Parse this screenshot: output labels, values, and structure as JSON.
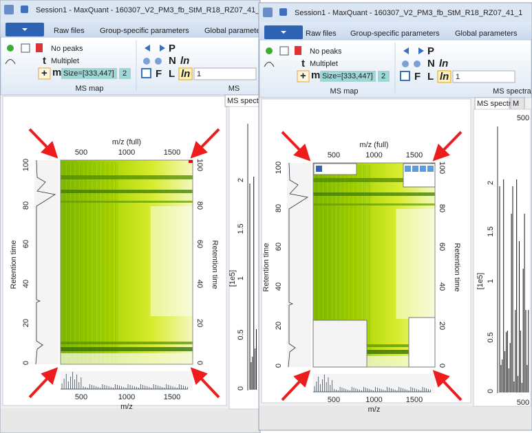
{
  "windows": [
    {
      "title": "Session1 - MaxQuant - 160307_V2_PM3_fb_StM_R18_RZ07_41_",
      "tabs": [
        "Raw files",
        "Group-specific parameters",
        "Global paramete"
      ],
      "ribbon": {
        "peaks": "No peaks",
        "multiplet": "Multiplet",
        "size": "Size=[333,447]",
        "size_value": "2",
        "input": "1",
        "icons": [
          "P",
          "N",
          "F",
          "L",
          "ln",
          "ln",
          "t",
          "m",
          "+"
        ],
        "group_labels": [
          "MS map",
          "MS"
        ]
      },
      "view_tabs": [
        "MS spectr"
      ],
      "map": {
        "top_axis_label": "m/z (full)",
        "top_ticks": [
          500,
          1000,
          1500
        ],
        "y_label_left": "Retention time",
        "y_label_right": "Retention time",
        "y_ticks": [
          100,
          80,
          60,
          40,
          20,
          0
        ],
        "bottom_axis_label": "m/z",
        "bottom_ticks": [
          500,
          1000,
          1500
        ]
      },
      "spectrum": {
        "y_ticks": [
          2,
          1.5,
          1,
          0.5,
          0
        ],
        "y_label": "[1e5]"
      }
    },
    {
      "title": "Session1 - MaxQuant - 160307_V2_PM3_fb_StM_R18_RZ07_41_1",
      "tabs": [
        "Raw files",
        "Group-specific parameters",
        "Global parameters"
      ],
      "ribbon": {
        "peaks": "No peaks",
        "multiplet": "Multiplet",
        "size": "Size=[333,447]",
        "size_value": "2",
        "input": "1",
        "icons": [
          "P",
          "N",
          "F",
          "L",
          "ln",
          "ln",
          "t",
          "m",
          "+"
        ],
        "group_labels": [
          "MS map",
          "MS spectra"
        ]
      },
      "view_tabs": [
        "MS spectra",
        "M"
      ],
      "map": {
        "top_axis_label": "m/z (full)",
        "top_ticks": [
          500,
          1000,
          1500
        ],
        "y_label_left": "Retention time",
        "y_label_right": "Retention time",
        "y_ticks": [
          100,
          80,
          60,
          40,
          20,
          0
        ],
        "bottom_axis_label": "m/z",
        "bottom_ticks": [
          500,
          1000,
          1500
        ]
      },
      "spectrum": {
        "y_ticks": [
          2,
          1.5,
          1,
          0.5,
          0
        ],
        "y_label": "[1e5]",
        "x_ticks_top": [
          500
        ],
        "x_ticks_bottom": [
          500
        ]
      }
    }
  ]
}
